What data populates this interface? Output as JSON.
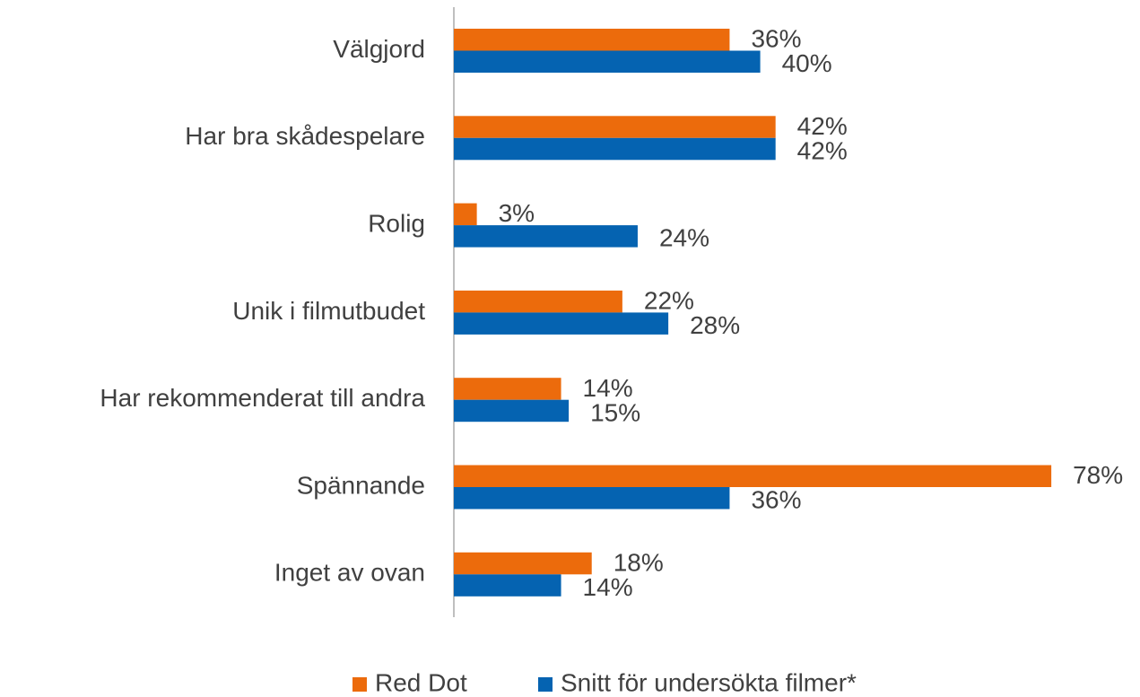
{
  "chart_data": {
    "type": "bar",
    "orientation": "horizontal",
    "categories": [
      "Välgjord",
      "Har bra skådespelare",
      "Rolig",
      "Unik i filmutbudet",
      "Har rekommenderat till andra",
      "Spännande",
      "Inget av ovan"
    ],
    "series": [
      {
        "name": "Red Dot",
        "color": "#ec6b0c",
        "values": [
          36,
          42,
          3,
          22,
          14,
          78,
          18
        ],
        "value_labels": [
          "36%",
          "42%",
          "3%",
          "22%",
          "14%",
          "78%",
          "18%"
        ]
      },
      {
        "name": "Snitt för undersökta filmer*",
        "color": "#0563b1",
        "values": [
          40,
          42,
          24,
          28,
          15,
          36,
          14
        ],
        "value_labels": [
          "40%",
          "42%",
          "24%",
          "28%",
          "15%",
          "36%",
          "14%"
        ]
      }
    ],
    "legend": "bottom"
  }
}
